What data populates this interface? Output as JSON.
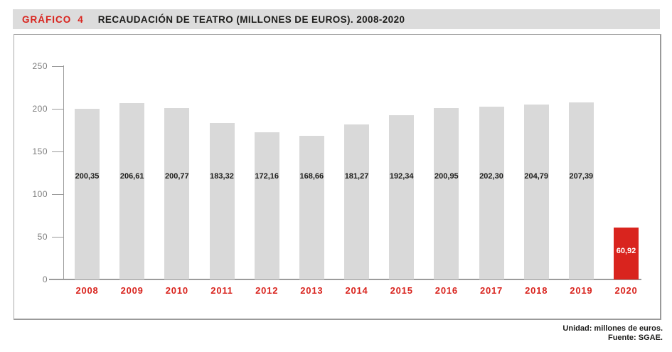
{
  "header": {
    "tag": "GRÁFICO",
    "number": "4",
    "title": "RECAUDACIÓN DE TEATRO (MILLONES DE EUROS). 2008-2020"
  },
  "footer": {
    "unit_line": "Unidad: millones de euros.",
    "source_line": "Fuente: SGAE."
  },
  "colors": {
    "accent_red": "#d9241e",
    "bar_gray": "#d9d9d9",
    "header_bg": "#dcdcdc",
    "axis_gray": "#9b9b9b",
    "tick_label_gray": "#7d7d7d",
    "value_label_black": "#1d1d1b",
    "highlight_value_label": "#ffffff"
  },
  "chart_data": {
    "type": "bar",
    "title": "RECAUDACIÓN DE TEATRO (MILLONES DE EUROS). 2008-2020",
    "categories": [
      "2008",
      "2009",
      "2010",
      "2011",
      "2012",
      "2013",
      "2014",
      "2015",
      "2016",
      "2017",
      "2018",
      "2019",
      "2020"
    ],
    "values": [
      200.35,
      206.61,
      200.77,
      183.32,
      172.16,
      168.66,
      181.27,
      192.34,
      200.95,
      202.3,
      204.79,
      207.39,
      60.92
    ],
    "value_labels": [
      "200,35",
      "206,61",
      "200,77",
      "183,32",
      "172,16",
      "168,66",
      "181,27",
      "192,34",
      "200,95",
      "202,30",
      "204,79",
      "207,39",
      "60,92"
    ],
    "highlight_index": 12,
    "xlabel": "",
    "ylabel": "",
    "ylim": [
      0,
      250
    ],
    "yticks": [
      0,
      50,
      100,
      150,
      200,
      250
    ],
    "grid": false,
    "legend": false,
    "unit": "millones de euros",
    "source": "SGAE"
  }
}
